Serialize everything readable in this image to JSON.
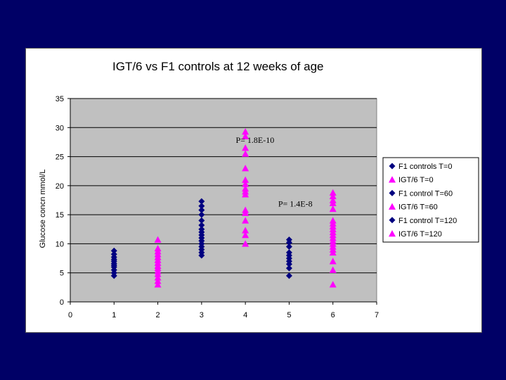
{
  "colors": {
    "background": "#000066",
    "panel": "#ffffff",
    "plot_area": "#c0c0c0",
    "navy": "#000080",
    "magenta": "#ff00ff"
  },
  "chart_data": {
    "type": "scatter",
    "title": "IGT/6 vs F1 controls at 12 weeks of age",
    "xlabel": "",
    "ylabel": "Glucose concn mmol/L",
    "xlim": [
      0,
      7
    ],
    "ylim": [
      0,
      35
    ],
    "x_ticks": [
      "0",
      "1",
      "2",
      "3",
      "4",
      "5",
      "6",
      "7"
    ],
    "y_ticks": [
      "0",
      "5",
      "10",
      "15",
      "20",
      "25",
      "30",
      "35"
    ],
    "grid": "horizontal",
    "legend_position": "right",
    "series": [
      {
        "name": "F1 controls T=0",
        "marker": "diamond",
        "color": "#000080",
        "x": 1,
        "values": [
          4.5,
          5.0,
          5.5,
          6.0,
          6.3,
          6.6,
          7.0,
          7.3,
          7.7,
          8.2,
          8.8
        ]
      },
      {
        "name": "IGT/6 T=0",
        "marker": "triangle",
        "color": "#ff00ff",
        "x": 2,
        "values": [
          3.0,
          3.6,
          4.2,
          4.8,
          5.3,
          5.8,
          6.2,
          6.7,
          7.2,
          7.7,
          8.2,
          8.7,
          9.2,
          10.7
        ]
      },
      {
        "name": "F1 control T=60",
        "marker": "diamond",
        "color": "#000080",
        "x": 3,
        "values": [
          8.0,
          8.5,
          9.0,
          9.5,
          10.0,
          10.5,
          11.0,
          11.5,
          12.0,
          12.5,
          13.2,
          14.0,
          15.0,
          15.8,
          16.5,
          17.3
        ]
      },
      {
        "name": "IGT/6 T=60",
        "marker": "triangle",
        "color": "#ff00ff",
        "x": 4,
        "values": [
          10.0,
          11.5,
          12.3,
          14.0,
          15.3,
          15.8,
          18.5,
          19.0,
          19.5,
          20.3,
          21.0,
          23.0,
          25.5,
          26.5,
          28.5,
          29.3
        ]
      },
      {
        "name": "F1 control T=120",
        "marker": "diamond",
        "color": "#000080",
        "x": 5,
        "values": [
          4.5,
          5.8,
          6.5,
          7.0,
          7.5,
          8.0,
          8.5,
          9.5,
          10.2,
          10.7
        ]
      },
      {
        "name": "IGT/6 T=120",
        "marker": "triangle",
        "color": "#ff00ff",
        "x": 6,
        "values": [
          3.0,
          5.5,
          7.0,
          8.5,
          9.0,
          9.5,
          10.0,
          10.5,
          11.0,
          11.5,
          12.0,
          12.5,
          13.0,
          13.5,
          14.0,
          16.0,
          17.0,
          17.5,
          18.2,
          18.8
        ]
      }
    ],
    "annotations": [
      {
        "text": "P= 1.8E-10",
        "x": 3.78,
        "y": 27.4
      },
      {
        "text": "P= 1.4E-8",
        "x": 4.75,
        "y": 16.4
      }
    ]
  }
}
